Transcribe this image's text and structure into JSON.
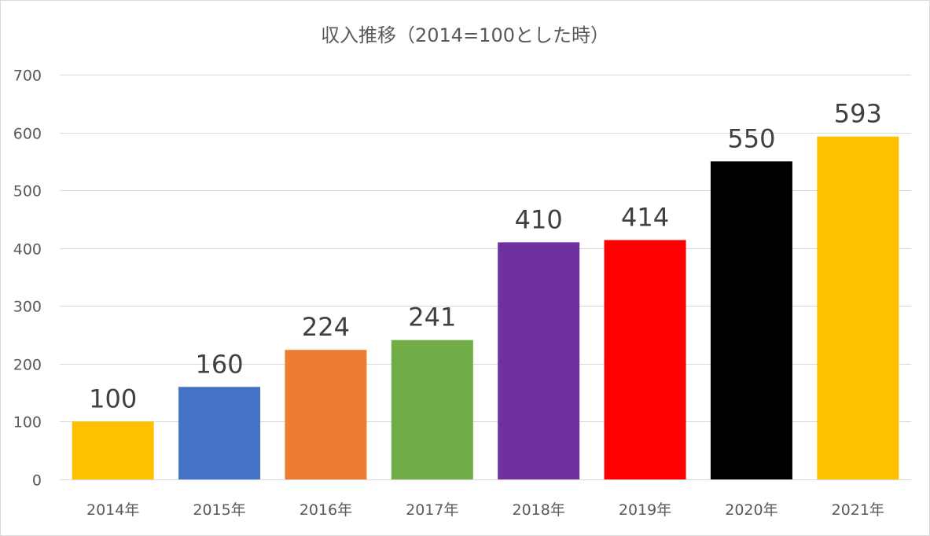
{
  "chart_data": {
    "type": "bar",
    "title": "収入推移（2014=100とした時）",
    "categories": [
      "2014年",
      "2015年",
      "2016年",
      "2017年",
      "2018年",
      "2019年",
      "2020年",
      "2021年"
    ],
    "values": [
      100,
      160,
      224,
      241,
      410,
      414,
      550,
      593
    ],
    "bar_colors": [
      "#FFC000",
      "#4472C4",
      "#ED7D31",
      "#70AD47",
      "#7030A0",
      "#FF0000",
      "#000000",
      "#FFC000"
    ],
    "ylim": [
      0,
      700
    ],
    "yticks": [
      0,
      100,
      200,
      300,
      400,
      500,
      600,
      700
    ],
    "xlabel": "",
    "ylabel": "",
    "grid": true,
    "legend": "none",
    "data_labels": true
  }
}
